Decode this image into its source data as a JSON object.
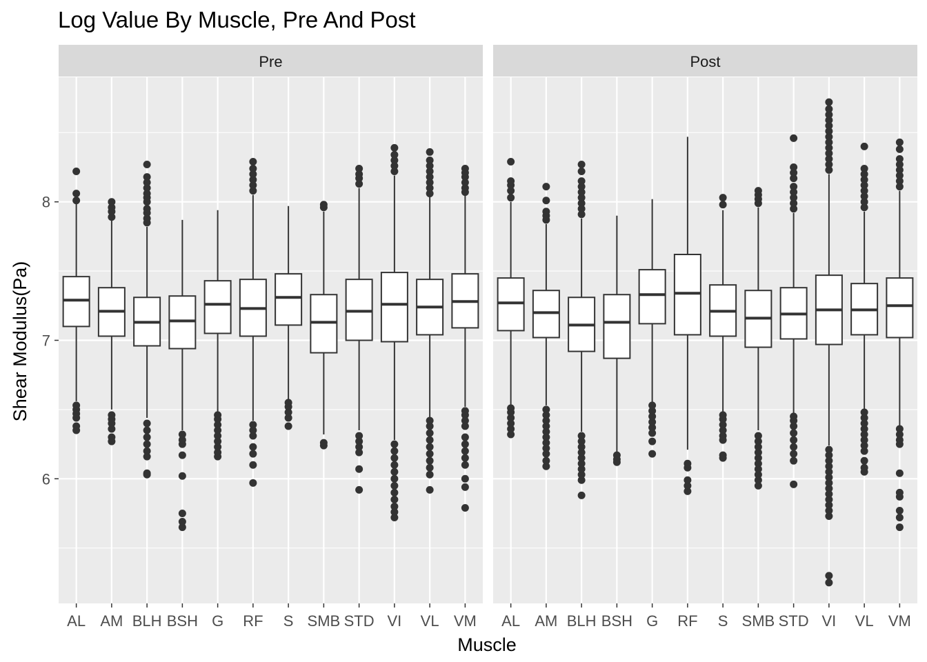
{
  "chart_data": {
    "type": "boxplot",
    "title": "Log Value By Muscle, Pre And Post",
    "xlabel": "Muscle",
    "ylabel": "Shear Modulus(Pa)",
    "ylim": [
      5.1,
      8.9
    ],
    "yticks": [
      6,
      7,
      8
    ],
    "grid": true,
    "categories": [
      "AL",
      "AM",
      "BLH",
      "BSH",
      "G",
      "RF",
      "S",
      "SMB",
      "STD",
      "VI",
      "VL",
      "VM"
    ],
    "facets": [
      {
        "name": "Pre",
        "boxes": [
          {
            "q1": 7.1,
            "median": 7.29,
            "q3": 7.46,
            "whisker_low": 6.56,
            "whisker_high": 8.0,
            "outliers": [
              6.35,
              6.38,
              6.44,
              6.47,
              6.5,
              6.53,
              8.01,
              8.06,
              8.22
            ]
          },
          {
            "q1": 7.03,
            "median": 7.21,
            "q3": 7.38,
            "whisker_low": 6.5,
            "whisker_high": 7.87,
            "outliers": [
              6.27,
              6.3,
              6.36,
              6.4,
              6.43,
              6.46,
              7.89,
              7.93,
              7.96,
              8.0
            ]
          },
          {
            "q1": 6.96,
            "median": 7.13,
            "q3": 7.31,
            "whisker_low": 6.44,
            "whisker_high": 7.82,
            "outliers": [
              6.03,
              6.04,
              6.16,
              6.2,
              6.25,
              6.3,
              6.35,
              6.4,
              7.85,
              7.88,
              7.92,
              7.95,
              8.0,
              8.03,
              8.06,
              8.1,
              8.14,
              8.18,
              8.27
            ]
          },
          {
            "q1": 6.94,
            "median": 7.14,
            "q3": 7.32,
            "whisker_low": 6.35,
            "whisker_high": 7.87,
            "outliers": [
              5.65,
              5.69,
              5.75,
              6.02,
              6.17,
              6.25,
              6.28,
              6.32
            ]
          },
          {
            "q1": 7.05,
            "median": 7.26,
            "q3": 7.43,
            "whisker_low": 6.48,
            "whisker_high": 7.94,
            "outliers": [
              6.16,
              6.19,
              6.23,
              6.27,
              6.31,
              6.35,
              6.39,
              6.43,
              6.46
            ]
          },
          {
            "q1": 7.03,
            "median": 7.23,
            "q3": 7.44,
            "whisker_low": 6.42,
            "whisker_high": 8.05,
            "outliers": [
              5.97,
              6.1,
              6.18,
              6.23,
              6.31,
              6.35,
              6.39,
              8.08,
              8.12,
              8.16,
              8.2,
              8.24,
              8.29
            ]
          },
          {
            "q1": 7.11,
            "median": 7.31,
            "q3": 7.48,
            "whisker_low": 6.56,
            "whisker_high": 7.97,
            "outliers": [
              6.38,
              6.44,
              6.48,
              6.52,
              6.55
            ]
          },
          {
            "q1": 6.91,
            "median": 7.13,
            "q3": 7.33,
            "whisker_low": 6.32,
            "whisker_high": 7.93,
            "outliers": [
              6.24,
              6.26,
              7.96,
              7.98
            ]
          },
          {
            "q1": 7.0,
            "median": 7.21,
            "q3": 7.44,
            "whisker_low": 6.35,
            "whisker_high": 8.1,
            "outliers": [
              5.92,
              6.07,
              6.19,
              6.23,
              6.27,
              6.31,
              8.13,
              8.17,
              8.2,
              8.24
            ]
          },
          {
            "q1": 6.99,
            "median": 7.26,
            "q3": 7.49,
            "whisker_low": 6.28,
            "whisker_high": 8.19,
            "outliers": [
              5.72,
              5.76,
              5.8,
              5.85,
              5.9,
              5.95,
              6.0,
              6.05,
              6.1,
              6.15,
              6.2,
              6.25,
              8.22,
              8.26,
              8.3,
              8.34,
              8.39
            ]
          },
          {
            "q1": 7.04,
            "median": 7.24,
            "q3": 7.44,
            "whisker_low": 6.44,
            "whisker_high": 8.04,
            "outliers": [
              5.92,
              6.03,
              6.08,
              6.13,
              6.18,
              6.23,
              6.28,
              6.33,
              6.38,
              6.42,
              8.06,
              8.1,
              8.14,
              8.18,
              8.22,
              8.26,
              8.3,
              8.36
            ]
          },
          {
            "q1": 7.09,
            "median": 7.28,
            "q3": 7.48,
            "whisker_low": 6.52,
            "whisker_high": 8.06,
            "outliers": [
              5.79,
              5.94,
              6.0,
              6.1,
              6.15,
              6.2,
              6.25,
              6.3,
              6.38,
              6.42,
              6.46,
              6.49,
              8.07,
              8.1,
              8.14,
              8.18,
              8.21,
              8.24
            ]
          }
        ]
      },
      {
        "name": "Post",
        "boxes": [
          {
            "q1": 7.07,
            "median": 7.27,
            "q3": 7.45,
            "whisker_low": 6.52,
            "whisker_high": 8.0,
            "outliers": [
              6.32,
              6.36,
              6.4,
              6.44,
              6.48,
              6.51,
              8.03,
              8.08,
              8.12,
              8.15,
              8.29
            ]
          },
          {
            "q1": 7.02,
            "median": 7.2,
            "q3": 7.36,
            "whisker_low": 6.53,
            "whisker_high": 7.84,
            "outliers": [
              6.09,
              6.13,
              6.18,
              6.22,
              6.26,
              6.3,
              6.34,
              6.38,
              6.42,
              6.46,
              6.5,
              7.87,
              7.9,
              7.93,
              8.01,
              8.11
            ]
          },
          {
            "q1": 6.92,
            "median": 7.11,
            "q3": 7.31,
            "whisker_low": 6.34,
            "whisker_high": 7.88,
            "outliers": [
              5.88,
              5.99,
              6.03,
              6.07,
              6.11,
              6.15,
              6.19,
              6.23,
              6.27,
              6.31,
              7.91,
              7.95,
              7.99,
              8.03,
              8.07,
              8.11,
              8.15,
              8.22,
              8.27
            ]
          },
          {
            "q1": 6.87,
            "median": 7.13,
            "q3": 7.33,
            "whisker_low": 6.19,
            "whisker_high": 7.9,
            "outliers": [
              6.12,
              6.14,
              6.17
            ]
          },
          {
            "q1": 7.12,
            "median": 7.33,
            "q3": 7.51,
            "whisker_low": 6.55,
            "whisker_high": 8.02,
            "outliers": [
              6.18,
              6.27,
              6.33,
              6.37,
              6.41,
              6.45,
              6.49,
              6.53
            ]
          },
          {
            "q1": 7.04,
            "median": 7.34,
            "q3": 7.62,
            "whisker_low": 6.21,
            "whisker_high": 8.47,
            "outliers": [
              5.91,
              5.95,
              5.99,
              6.08,
              6.11
            ]
          },
          {
            "q1": 7.03,
            "median": 7.21,
            "q3": 7.4,
            "whisker_low": 6.48,
            "whisker_high": 7.94,
            "outliers": [
              6.15,
              6.17,
              6.28,
              6.31,
              6.35,
              6.39,
              6.43,
              6.46,
              7.98,
              8.03
            ]
          },
          {
            "q1": 6.95,
            "median": 7.16,
            "q3": 7.36,
            "whisker_low": 6.35,
            "whisker_high": 7.96,
            "outliers": [
              5.95,
              5.99,
              6.03,
              6.07,
              6.11,
              6.15,
              6.19,
              6.23,
              6.27,
              6.31,
              7.99,
              8.02,
              8.05,
              8.08
            ]
          },
          {
            "q1": 7.01,
            "median": 7.19,
            "q3": 7.38,
            "whisker_low": 6.47,
            "whisker_high": 7.92,
            "outliers": [
              5.96,
              6.13,
              6.18,
              6.23,
              6.28,
              6.33,
              6.38,
              6.42,
              6.45,
              7.95,
              7.99,
              8.03,
              8.07,
              8.11,
              8.17,
              8.21,
              8.25,
              8.46
            ]
          },
          {
            "q1": 6.97,
            "median": 7.22,
            "q3": 7.47,
            "whisker_low": 6.24,
            "whisker_high": 8.2,
            "outliers": [
              5.25,
              5.3,
              5.73,
              5.77,
              5.81,
              5.85,
              5.89,
              5.93,
              5.97,
              6.01,
              6.05,
              6.09,
              6.13,
              6.17,
              6.21,
              8.23,
              8.27,
              8.31,
              8.35,
              8.39,
              8.43,
              8.47,
              8.51,
              8.55,
              8.59,
              8.63,
              8.67,
              8.72
            ]
          },
          {
            "q1": 7.04,
            "median": 7.22,
            "q3": 7.41,
            "whisker_low": 6.5,
            "whisker_high": 7.93,
            "outliers": [
              6.05,
              6.08,
              6.13,
              6.2,
              6.24,
              6.28,
              6.32,
              6.36,
              6.4,
              6.44,
              6.48,
              7.96,
              8.0,
              8.04,
              8.08,
              8.12,
              8.16,
              8.2,
              8.24,
              8.4
            ]
          },
          {
            "q1": 7.02,
            "median": 7.25,
            "q3": 7.45,
            "whisker_low": 6.38,
            "whisker_high": 8.08,
            "outliers": [
              5.65,
              5.72,
              5.77,
              5.87,
              5.9,
              6.04,
              6.25,
              6.28,
              6.32,
              6.36,
              8.11,
              8.15,
              8.19,
              8.23,
              8.27,
              8.31,
              8.38,
              8.43
            ]
          }
        ]
      }
    ]
  }
}
